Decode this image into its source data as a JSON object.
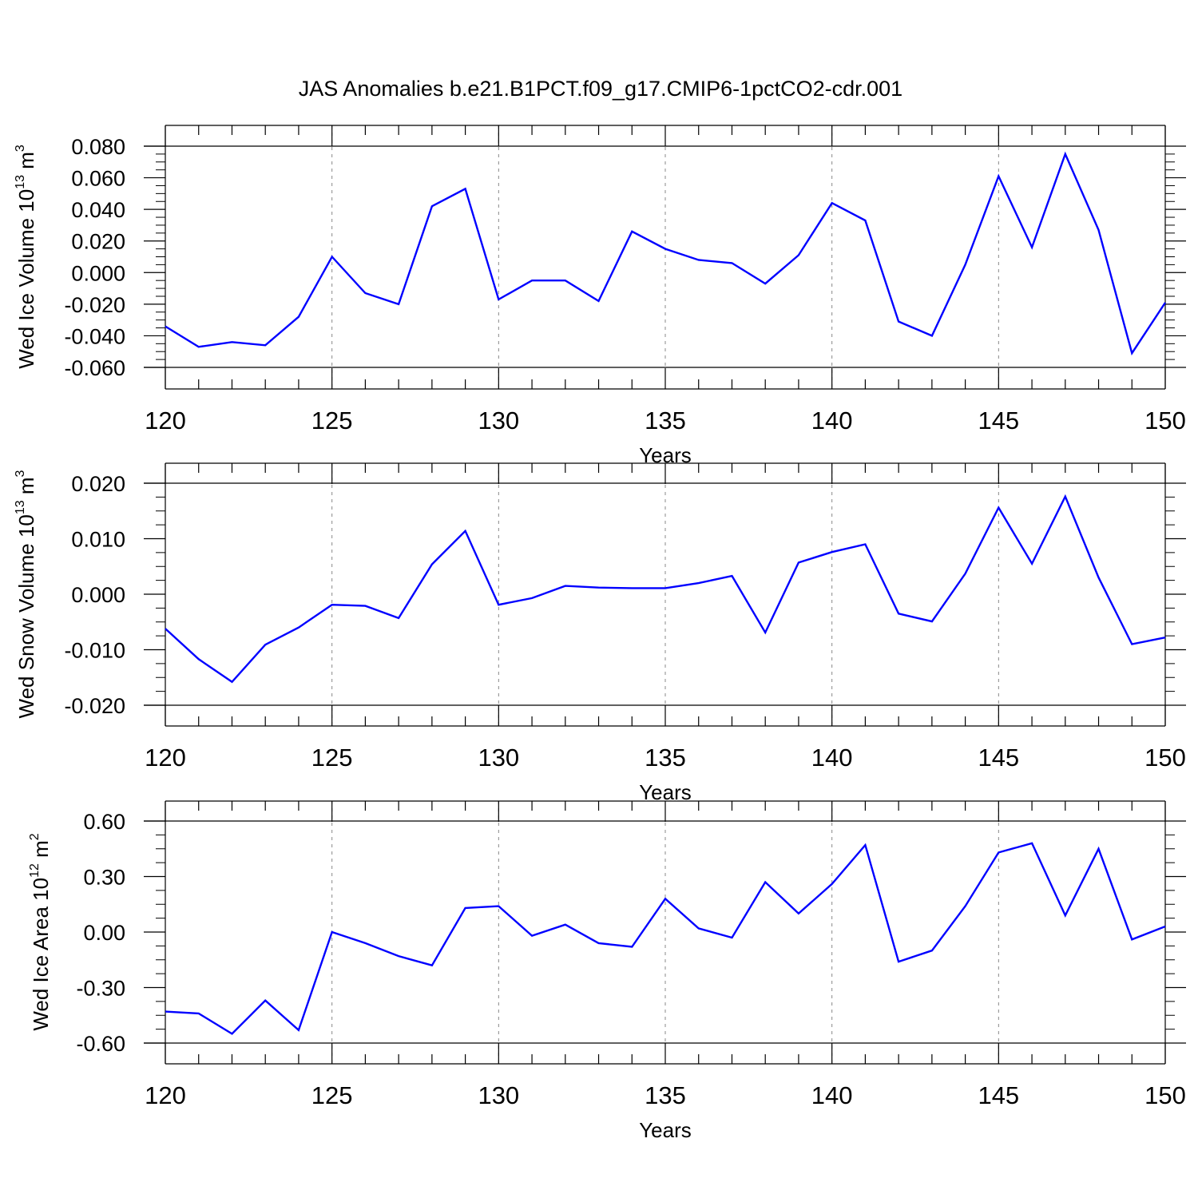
{
  "title": "JAS Anomalies b.e21.B1PCT.f09_g17.CMIP6-1pctCO2-cdr.001",
  "line_color": "#0000ff",
  "chart_data": [
    {
      "type": "line",
      "ylabel": {
        "text": "Wed Ice Volume 10",
        "exp": "13",
        "unit": " m",
        "unit_exp": "3"
      },
      "xlabel": "Years",
      "xlim": [
        120,
        150
      ],
      "ylim": [
        -0.065,
        0.08
      ],
      "yticks": [
        -0.06,
        -0.04,
        -0.02,
        0.0,
        0.02,
        0.04,
        0.06,
        0.08
      ],
      "ytick_labels": [
        "-0.060",
        "-0.040",
        "-0.020",
        "0.000",
        "0.020",
        "0.040",
        "0.060",
        "0.080"
      ],
      "xticks": [
        120,
        125,
        130,
        135,
        140,
        145,
        150
      ],
      "xtick_labels": [
        "120",
        "125",
        "130",
        "135",
        "140",
        "145",
        "150"
      ],
      "grid": "vertical dashed at major x ticks",
      "x": [
        120,
        121,
        122,
        123,
        124,
        125,
        126,
        127,
        128,
        129,
        130,
        131,
        132,
        133,
        134,
        135,
        136,
        137,
        138,
        139,
        140,
        141,
        142,
        143,
        144,
        145,
        146,
        147,
        148,
        149,
        150
      ],
      "values": [
        -0.034,
        -0.047,
        -0.044,
        -0.046,
        -0.028,
        0.01,
        -0.013,
        -0.02,
        0.042,
        0.053,
        -0.017,
        -0.005,
        -0.005,
        -0.018,
        0.026,
        0.015,
        0.008,
        0.006,
        -0.007,
        0.011,
        0.044,
        0.033,
        -0.031,
        -0.04,
        0.005,
        0.061,
        0.016,
        0.075,
        0.027,
        -0.051,
        -0.019
      ]
    },
    {
      "type": "line",
      "ylabel": {
        "text": "Wed Snow Volume 10",
        "exp": "13",
        "unit": " m",
        "unit_exp": "3"
      },
      "xlabel": "Years",
      "xlim": [
        120,
        150
      ],
      "ylim": [
        -0.02,
        0.024
      ],
      "yticks": [
        -0.02,
        -0.01,
        0.0,
        0.01,
        0.02
      ],
      "ytick_labels": [
        "-0.020",
        "-0.010",
        "0.000",
        "0.010",
        "0.020"
      ],
      "xticks": [
        120,
        125,
        130,
        135,
        140,
        145,
        150
      ],
      "xtick_labels": [
        "120",
        "125",
        "130",
        "135",
        "140",
        "145",
        "150"
      ],
      "grid": "vertical dashed at major x ticks",
      "x": [
        120,
        121,
        122,
        123,
        124,
        125,
        126,
        127,
        128,
        129,
        130,
        131,
        132,
        133,
        134,
        135,
        136,
        137,
        138,
        139,
        140,
        141,
        142,
        143,
        144,
        145,
        146,
        147,
        148,
        149,
        150
      ],
      "values": [
        -0.0062,
        -0.0117,
        -0.0158,
        -0.0091,
        -0.006,
        -0.0019,
        -0.0021,
        -0.0043,
        0.0054,
        0.0114,
        -0.0019,
        -0.0007,
        0.0015,
        0.0012,
        0.0011,
        0.0011,
        0.002,
        0.0033,
        -0.0069,
        0.0057,
        0.0076,
        0.009,
        -0.0035,
        -0.0049,
        0.0037,
        0.0156,
        0.0055,
        0.0176,
        0.003,
        -0.009,
        -0.0078
      ]
    },
    {
      "type": "line",
      "ylabel": {
        "text": "Wed Ice Area 10",
        "exp": "12",
        "unit": " m",
        "unit_exp": "2"
      },
      "xlabel": "Years",
      "xlim": [
        120,
        150
      ],
      "ylim": [
        -0.6,
        0.72
      ],
      "yticks": [
        -0.6,
        -0.3,
        0.0,
        0.3,
        0.6
      ],
      "ytick_labels": [
        "-0.60",
        "-0.30",
        "0.00",
        "0.30",
        "0.60"
      ],
      "xticks": [
        120,
        125,
        130,
        135,
        140,
        145,
        150
      ],
      "xtick_labels": [
        "120",
        "125",
        "130",
        "135",
        "140",
        "145",
        "150"
      ],
      "grid": "vertical dashed at major x ticks",
      "x": [
        120,
        121,
        122,
        123,
        124,
        125,
        126,
        127,
        128,
        129,
        130,
        131,
        132,
        133,
        134,
        135,
        136,
        137,
        138,
        139,
        140,
        141,
        142,
        143,
        144,
        145,
        146,
        147,
        148,
        149,
        150
      ],
      "values": [
        -0.43,
        -0.44,
        -0.55,
        -0.37,
        -0.53,
        0.0,
        -0.06,
        -0.13,
        -0.18,
        0.13,
        0.14,
        -0.02,
        0.04,
        -0.06,
        -0.08,
        0.18,
        0.02,
        -0.03,
        0.27,
        0.1,
        0.26,
        0.47,
        -0.16,
        -0.1,
        0.14,
        0.43,
        0.48,
        0.09,
        0.45,
        -0.04,
        0.03
      ]
    }
  ]
}
